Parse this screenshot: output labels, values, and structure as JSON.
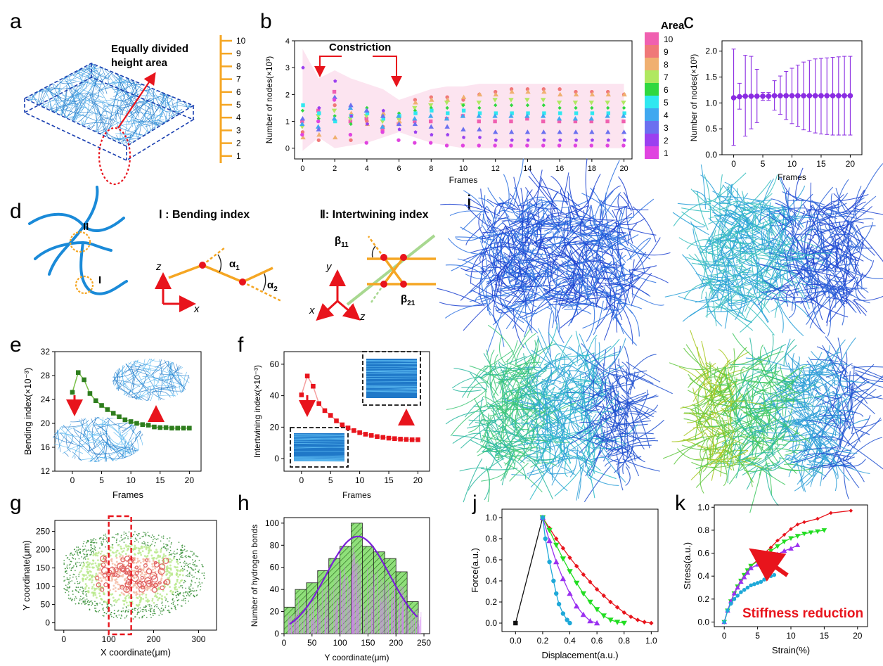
{
  "colors": {
    "blue_fiber": "#1f78c8",
    "orange": "#f5a623",
    "red": "#e8141c",
    "purple": "#8a2be2",
    "green_dark": "#2e7d1e",
    "pink_band": "#fce4f0",
    "area_palette": [
      "#e044e0",
      "#9b40f0",
      "#6b70f0",
      "#40a8f0",
      "#30e8f0",
      "#30d840",
      "#b0e860",
      "#f0b070",
      "#f07878",
      "#f060b0"
    ]
  },
  "panels": {
    "a": {
      "label": "a",
      "annotation_line1": "Equally divided",
      "annotation_line2": "height area",
      "scale_ticks": [
        "10",
        "9",
        "8",
        "7",
        "6",
        "5",
        "4",
        "3",
        "2",
        "1"
      ]
    },
    "b": {
      "label": "b",
      "annotation": "Constriction",
      "legend_title": "Area",
      "legend_items": [
        "10",
        "9",
        "8",
        "7",
        "6",
        "5",
        "4",
        "3",
        "2",
        "1"
      ]
    },
    "c": {
      "label": "c"
    },
    "d": {
      "label": "d",
      "mark_I": "I",
      "mark_II": "II",
      "title_I": "Ⅰ : Bending index",
      "title_II": "Ⅱ: Intertwining index",
      "alpha1": "α",
      "alpha1_sub": "1",
      "alpha2": "α",
      "alpha2_sub": "2",
      "beta11": "β",
      "beta11_sub": "11",
      "beta21": "β",
      "beta21_sub": "21",
      "axis_z": "z",
      "axis_x": "x",
      "axis_y": "y"
    },
    "e": {
      "label": "e"
    },
    "f": {
      "label": "f"
    },
    "g": {
      "label": "g"
    },
    "h": {
      "label": "h"
    },
    "i": {
      "label": "i"
    },
    "j": {
      "label": "j"
    },
    "k": {
      "label": "k",
      "annotation": "Stiffness reduction"
    }
  },
  "chart_data": [
    {
      "id": "b",
      "type": "scatter",
      "title": "",
      "xlabel": "Frames",
      "ylabel": "Number of nodes(×10³)",
      "xlim": [
        -0.5,
        20.5
      ],
      "ylim": [
        -0.4,
        4
      ],
      "xticks": [
        "0",
        "2",
        "4",
        "6",
        "8",
        "10",
        "12",
        "14",
        "16",
        "18",
        "20"
      ],
      "yticks": [
        "0",
        "1",
        "2",
        "3",
        "4"
      ],
      "x": [
        0,
        1,
        2,
        3,
        4,
        5,
        6,
        7,
        8,
        9,
        10,
        11,
        12,
        13,
        14,
        15,
        16,
        17,
        18,
        19,
        20
      ],
      "band_upper": [
        3.7,
        2.6,
        2.9,
        2.6,
        2.4,
        2.2,
        1.8,
        2.0,
        2.2,
        2.3,
        2.3,
        2.4,
        2.4,
        2.4,
        2.4,
        2.4,
        2.4,
        2.4,
        2.4,
        2.4,
        2.4
      ],
      "band_lower": [
        -0.1,
        0.4,
        0.0,
        0.1,
        0.2,
        0.4,
        0.6,
        0.4,
        0.2,
        0.1,
        0.0,
        0.0,
        0.0,
        0.0,
        0.0,
        0.0,
        0.0,
        0.0,
        0.0,
        0.0,
        0.0
      ],
      "series": [
        {
          "name": "10",
          "values": [
            1.0,
            1.4,
            2.1,
            1.0,
            1.1,
            0.7,
            0.9,
            1.0,
            1.0,
            1.1,
            1.2,
            1.0,
            1.0,
            1.0,
            1.1,
            1.0,
            1.0,
            1.0,
            1.0,
            1.0,
            1.0
          ]
        },
        {
          "name": "9",
          "values": [
            0.6,
            0.3,
            1.6,
            0.3,
            1.0,
            0.8,
            1.1,
            1.8,
            1.9,
            1.9,
            1.8,
            2.0,
            2.1,
            2.2,
            2.2,
            2.2,
            2.2,
            2.1,
            2.1,
            2.1,
            2.0
          ]
        },
        {
          "name": "8",
          "values": [
            0.4,
            0.5,
            0.4,
            1.3,
            0.9,
            1.3,
            1.0,
            1.7,
            1.8,
            1.8,
            1.9,
            2.0,
            2.0,
            2.1,
            2.1,
            2.1,
            2.0,
            2.0,
            2.0,
            2.0,
            2.0
          ]
        },
        {
          "name": "7",
          "values": [
            0.8,
            1.2,
            1.4,
            1.1,
            1.2,
            1.0,
            1.1,
            1.5,
            1.6,
            1.7,
            1.6,
            1.7,
            1.8,
            1.8,
            1.8,
            1.8,
            1.7,
            1.7,
            1.7,
            1.7,
            1.7
          ]
        },
        {
          "name": "6",
          "values": [
            1.4,
            1.1,
            1.2,
            0.9,
            1.5,
            1.2,
            1.3,
            1.4,
            1.5,
            1.5,
            1.6,
            1.5,
            1.6,
            1.6,
            1.6,
            1.6,
            1.5,
            1.5,
            1.5,
            1.5,
            1.5
          ]
        },
        {
          "name": "5",
          "values": [
            1.6,
            1.3,
            1.0,
            1.2,
            1.3,
            1.1,
            1.2,
            1.3,
            1.4,
            1.3,
            1.4,
            1.3,
            1.3,
            1.3,
            1.3,
            1.3,
            1.3,
            1.3,
            1.3,
            1.3,
            1.3
          ]
        },
        {
          "name": "4",
          "values": [
            0.9,
            0.8,
            1.1,
            1.5,
            1.4,
            0.8,
            1.2,
            1.1,
            1.2,
            1.1,
            1.2,
            1.2,
            1.2,
            1.2,
            1.2,
            1.2,
            1.1,
            1.1,
            1.1,
            1.2,
            1.2
          ]
        },
        {
          "name": "3",
          "values": [
            1.1,
            0.7,
            1.9,
            1.6,
            1.4,
            1.2,
            0.9,
            0.9,
            0.8,
            0.8,
            0.7,
            0.7,
            0.6,
            0.6,
            0.6,
            0.6,
            0.6,
            0.6,
            0.6,
            0.6,
            0.6
          ]
        },
        {
          "name": "2",
          "values": [
            3.0,
            1.5,
            2.5,
            1.2,
            0.9,
            1.4,
            0.7,
            0.6,
            0.5,
            0.5,
            0.4,
            0.4,
            0.3,
            0.3,
            0.3,
            0.3,
            0.3,
            0.3,
            0.3,
            0.3,
            0.3
          ]
        },
        {
          "name": "1",
          "values": [
            0.5,
            1.0,
            1.8,
            0.5,
            0.2,
            0.6,
            0.3,
            0.2,
            0.2,
            0.1,
            0.1,
            0.1,
            0.1,
            0.1,
            0.1,
            0.1,
            0.1,
            0.1,
            0.1,
            0.1,
            0.1
          ]
        }
      ]
    },
    {
      "id": "c",
      "type": "errorbar",
      "xlabel": "Frames",
      "ylabel": "Number of nodes(×10³)",
      "xlim": [
        -2,
        22
      ],
      "ylim": [
        0,
        2.2
      ],
      "xticks": [
        "0",
        "5",
        "10",
        "15",
        "20"
      ],
      "yticks": [
        "0.0",
        "0.5",
        "1.0",
        "1.5",
        "2.0"
      ],
      "x": [
        0,
        1,
        2,
        3,
        4,
        5,
        6,
        7,
        8,
        9,
        10,
        11,
        12,
        13,
        14,
        15,
        16,
        17,
        18,
        19,
        20
      ],
      "values": [
        1.1,
        1.12,
        1.13,
        1.13,
        1.13,
        1.13,
        1.13,
        1.14,
        1.14,
        1.14,
        1.14,
        1.14,
        1.14,
        1.14,
        1.14,
        1.14,
        1.14,
        1.14,
        1.14,
        1.14,
        1.14
      ],
      "upper": [
        2.04,
        1.38,
        1.92,
        1.9,
        1.65,
        1.2,
        1.2,
        1.43,
        1.52,
        1.61,
        1.67,
        1.73,
        1.79,
        1.82,
        1.85,
        1.86,
        1.87,
        1.88,
        1.89,
        1.9,
        1.9
      ],
      "lower": [
        0.18,
        0.88,
        0.36,
        0.5,
        0.62,
        1.05,
        1.05,
        0.86,
        0.78,
        0.68,
        0.6,
        0.55,
        0.48,
        0.45,
        0.42,
        0.4,
        0.39,
        0.38,
        0.38,
        0.38,
        0.38
      ]
    },
    {
      "id": "e",
      "type": "line",
      "xlabel": "Frames",
      "ylabel": "Bending index(×10⁻³)",
      "xlim": [
        -3,
        22
      ],
      "ylim": [
        12,
        32
      ],
      "xticks": [
        "0",
        "5",
        "10",
        "15",
        "20"
      ],
      "yticks": [
        "12",
        "16",
        "20",
        "24",
        "28",
        "32"
      ],
      "x": [
        0,
        1,
        2,
        3,
        4,
        5,
        6,
        7,
        8,
        9,
        10,
        11,
        12,
        13,
        14,
        15,
        16,
        17,
        18,
        19,
        20
      ],
      "values": [
        25.2,
        28.5,
        27.3,
        25.0,
        23.8,
        23.0,
        22.3,
        21.7,
        21.1,
        20.6,
        20.3,
        20.0,
        19.8,
        19.7,
        19.4,
        19.3,
        19.3,
        19.2,
        19.2,
        19.2,
        19.2
      ]
    },
    {
      "id": "f",
      "type": "line",
      "xlabel": "Frames",
      "ylabel": "Intertwining index(×10⁻³)",
      "xlim": [
        -3,
        22
      ],
      "ylim": [
        -8,
        68
      ],
      "xticks": [
        "0",
        "5",
        "10",
        "15",
        "20"
      ],
      "yticks": [
        "0",
        "20",
        "40",
        "60"
      ],
      "x": [
        0,
        1,
        2,
        3,
        4,
        5,
        6,
        7,
        8,
        9,
        10,
        11,
        12,
        13,
        14,
        15,
        16,
        17,
        18,
        19,
        20
      ],
      "values": [
        40.5,
        52.5,
        46.0,
        35.0,
        30.5,
        27.5,
        24.0,
        21.5,
        19.5,
        17.8,
        16.5,
        15.5,
        14.7,
        14.0,
        13.5,
        13.0,
        12.7,
        12.4,
        12.2,
        12.0,
        12.0
      ]
    },
    {
      "id": "g",
      "type": "scatter",
      "xlabel": "X coordinate(μm)",
      "ylabel": "Y coordinate(μm)",
      "xlim": [
        -20,
        340
      ],
      "ylim": [
        -20,
        280
      ],
      "xticks": [
        "0",
        "100",
        "200",
        "300"
      ],
      "yticks": [
        "0",
        "50",
        "100",
        "150",
        "200",
        "250"
      ]
    },
    {
      "id": "h",
      "type": "bar",
      "xlabel": "Y coordinate(μm)",
      "ylabel": "Number of hydrogen bonds",
      "xlim": [
        0,
        260
      ],
      "ylim": [
        0,
        105
      ],
      "xticks": [
        "0",
        "50",
        "100",
        "150",
        "200",
        "250"
      ],
      "yticks": [
        "0",
        "20",
        "40",
        "60",
        "80",
        "100"
      ],
      "bin_starts": [
        0,
        20,
        40,
        60,
        80,
        100,
        120,
        140,
        160,
        180,
        200,
        220
      ],
      "values": [
        24,
        40,
        46,
        57,
        68,
        79,
        100,
        79,
        74,
        68,
        56,
        29
      ]
    },
    {
      "id": "j",
      "type": "line",
      "xlabel": "Displacement(a.u.)",
      "ylabel": "Force(a.u.)",
      "xlim": [
        -0.1,
        1.05
      ],
      "ylim": [
        -0.08,
        1.08
      ],
      "xticks": [
        "0.0",
        "0.2",
        "0.4",
        "0.6",
        "0.8",
        "1.0"
      ],
      "yticks": [
        "0.0",
        "0.2",
        "0.4",
        "0.6",
        "0.8",
        "1.0"
      ],
      "series": [
        {
          "name": "loading",
          "color": "#111111",
          "marker": "square",
          "x": [
            0.0,
            0.2
          ],
          "y": [
            0.0,
            1.0
          ]
        },
        {
          "name": "red",
          "color": "#e8141c",
          "marker": "diamond",
          "x": [
            0.2,
            0.25,
            0.3,
            0.35,
            0.4,
            0.45,
            0.5,
            0.55,
            0.6,
            0.65,
            0.7,
            0.75,
            0.8,
            0.85,
            0.9,
            0.95,
            1.0
          ],
          "y": [
            1.0,
            0.9,
            0.8,
            0.71,
            0.62,
            0.54,
            0.46,
            0.39,
            0.32,
            0.26,
            0.2,
            0.15,
            0.1,
            0.06,
            0.03,
            0.01,
            0.0
          ]
        },
        {
          "name": "green",
          "color": "#22dd22",
          "marker": "triangle-down",
          "x": [
            0.2,
            0.25,
            0.3,
            0.35,
            0.4,
            0.45,
            0.5,
            0.55,
            0.6,
            0.65,
            0.7,
            0.75,
            0.8
          ],
          "y": [
            1.0,
            0.88,
            0.74,
            0.61,
            0.49,
            0.38,
            0.28,
            0.2,
            0.13,
            0.07,
            0.03,
            0.01,
            0.0
          ]
        },
        {
          "name": "purple",
          "color": "#9b30f0",
          "marker": "triangle",
          "x": [
            0.2,
            0.25,
            0.3,
            0.35,
            0.4,
            0.45,
            0.5,
            0.55,
            0.6
          ],
          "y": [
            1.0,
            0.78,
            0.58,
            0.42,
            0.28,
            0.16,
            0.08,
            0.02,
            0.0
          ]
        },
        {
          "name": "cyan",
          "color": "#1ea8d8",
          "marker": "circle",
          "x": [
            0.2,
            0.22,
            0.25,
            0.28,
            0.3,
            0.32,
            0.35,
            0.38,
            0.4
          ],
          "y": [
            1.0,
            0.8,
            0.58,
            0.4,
            0.28,
            0.18,
            0.09,
            0.03,
            0.0
          ]
        }
      ]
    },
    {
      "id": "k",
      "type": "line",
      "xlabel": "Strain(%)",
      "ylabel": "Stress(a.u.)",
      "xlim": [
        -1.5,
        21.5
      ],
      "ylim": [
        -0.04,
        1.02
      ],
      "xticks": [
        "0",
        "5",
        "10",
        "15",
        "20"
      ],
      "yticks": [
        "0.0",
        "0.2",
        "0.4",
        "0.6",
        "0.8",
        "1.0"
      ],
      "series": [
        {
          "name": "red",
          "color": "#e8141c",
          "marker": "diamond",
          "x": [
            0,
            0.5,
            1,
            1.5,
            2,
            2.5,
            3,
            3.5,
            4,
            5,
            6,
            7,
            8,
            9,
            10,
            11,
            12,
            14,
            16,
            19
          ],
          "y": [
            0.0,
            0.1,
            0.18,
            0.25,
            0.31,
            0.36,
            0.41,
            0.45,
            0.49,
            0.54,
            0.6,
            0.65,
            0.71,
            0.76,
            0.81,
            0.85,
            0.87,
            0.9,
            0.95,
            0.97
          ]
        },
        {
          "name": "green",
          "color": "#22dd22",
          "marker": "triangle-down",
          "x": [
            0,
            0.5,
            1,
            1.5,
            2,
            2.5,
            3,
            3.5,
            4,
            5,
            6,
            7,
            8,
            9,
            10,
            11,
            12,
            13,
            14,
            15
          ],
          "y": [
            0.0,
            0.1,
            0.18,
            0.25,
            0.31,
            0.36,
            0.41,
            0.45,
            0.49,
            0.53,
            0.57,
            0.62,
            0.66,
            0.7,
            0.73,
            0.75,
            0.77,
            0.78,
            0.79,
            0.8
          ]
        },
        {
          "name": "purple",
          "color": "#9b30f0",
          "marker": "triangle",
          "x": [
            0,
            0.5,
            1,
            1.5,
            2,
            2.5,
            3,
            3.5,
            4,
            5,
            6,
            7,
            8,
            9,
            10,
            11
          ],
          "y": [
            0.0,
            0.1,
            0.18,
            0.25,
            0.3,
            0.35,
            0.39,
            0.43,
            0.47,
            0.5,
            0.53,
            0.56,
            0.59,
            0.62,
            0.64,
            0.67
          ]
        },
        {
          "name": "cyan",
          "color": "#1ea8d8",
          "marker": "circle",
          "x": [
            0,
            0.5,
            1,
            1.5,
            2,
            2.5,
            3,
            3.5,
            4,
            4.5,
            5,
            5.5,
            6,
            7,
            7.5
          ],
          "y": [
            0.0,
            0.1,
            0.16,
            0.2,
            0.23,
            0.26,
            0.28,
            0.3,
            0.32,
            0.33,
            0.34,
            0.35,
            0.37,
            0.4,
            0.41
          ]
        }
      ]
    }
  ]
}
